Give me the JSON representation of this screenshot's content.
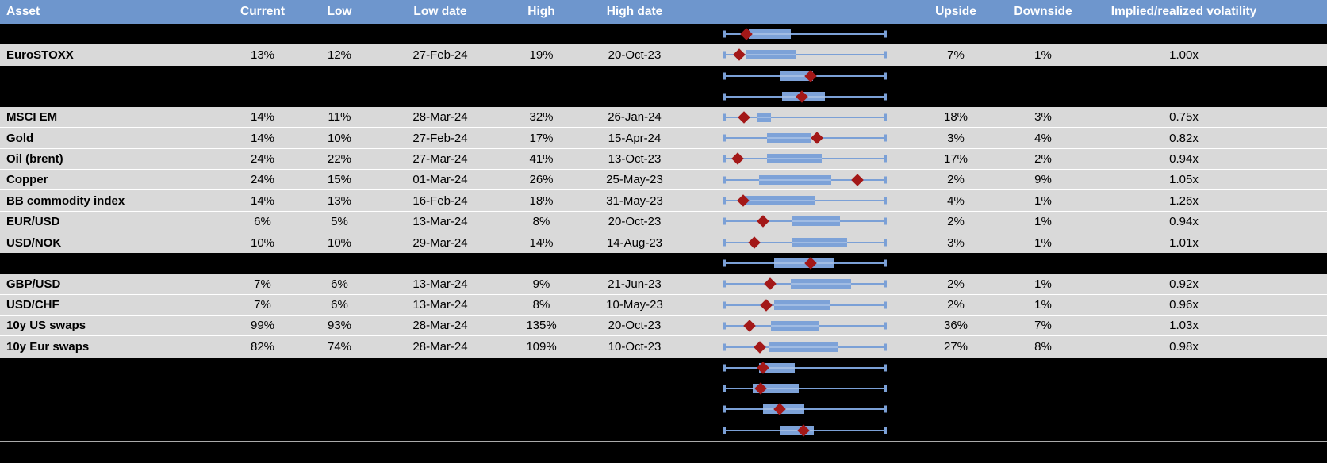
{
  "colors": {
    "header_bg": "#6e96cd",
    "header_text": "#ffffff",
    "row_bg": "#d9d9d9",
    "hidden_row_bg": "#000000",
    "row_text": "#000000",
    "gridline": "#ffffff",
    "whisker": "#7ba0d6",
    "box_fill": "#7da2d8",
    "diamond": "#a31818",
    "footer_line": "#aaaaaa",
    "footer_bg": "#000000"
  },
  "chart_data": {
    "type": "table",
    "columns": [
      "Asset",
      "Current",
      "Low",
      "Low date",
      "High",
      "High date",
      "",
      "Upside",
      "Downside",
      "Implied/realized volatility"
    ],
    "embedded_chart": {
      "type": "boxplot-horizontal",
      "description": "Per-row horizontal box-whisker plot of implied volatility range: whiskers span the full low-to-high range (normalized 0 to 1), blue box is the interquartile band, dark-red diamond marks the current level",
      "marker": "diamond",
      "x_range": [
        0,
        1
      ],
      "legend": "none",
      "grid": false
    },
    "rows": [
      {
        "asset": "",
        "current": "",
        "low": "",
        "low_date": "",
        "high": "",
        "high_date": "",
        "upside": "",
        "downside": "",
        "implied_realized": "",
        "hidden": true,
        "boxplot": {
          "box_lo": 0.152,
          "box_hi": 0.412,
          "diamond": 0.137
        }
      },
      {
        "asset": "EuroSTOXX",
        "current": "13%",
        "low": "12%",
        "low_date": "27-Feb-24",
        "high": "19%",
        "high_date": "20-Oct-23",
        "upside": "7%",
        "downside": "1%",
        "implied_realized": "1.00x",
        "hidden": false,
        "boxplot": {
          "box_lo": 0.137,
          "box_hi": 0.446,
          "diamond": 0.093
        }
      },
      {
        "asset": "",
        "current": "",
        "low": "",
        "low_date": "",
        "high": "",
        "high_date": "",
        "upside": "",
        "downside": "",
        "implied_realized": "",
        "hidden": true,
        "boxplot": {
          "box_lo": 0.343,
          "box_hi": 0.549,
          "diamond": 0.534
        }
      },
      {
        "asset": "",
        "current": "",
        "low": "",
        "low_date": "",
        "high": "",
        "high_date": "",
        "upside": "",
        "downside": "",
        "implied_realized": "",
        "hidden": true,
        "boxplot": {
          "box_lo": 0.358,
          "box_hi": 0.623,
          "diamond": 0.48
        }
      },
      {
        "asset": "MSCI EM",
        "current": "14%",
        "low": "11%",
        "low_date": "28-Mar-24",
        "high": "32%",
        "high_date": "26-Jan-24",
        "upside": "18%",
        "downside": "3%",
        "implied_realized": "0.75x",
        "hidden": false,
        "boxplot": {
          "box_lo": 0.206,
          "box_hi": 0.289,
          "diamond": 0.123
        }
      },
      {
        "asset": "Gold",
        "current": "14%",
        "low": "10%",
        "low_date": "27-Feb-24",
        "high": "17%",
        "high_date": "15-Apr-24",
        "upside": "3%",
        "downside": "4%",
        "implied_realized": "0.82x",
        "hidden": false,
        "boxplot": {
          "box_lo": 0.265,
          "box_hi": 0.539,
          "diamond": 0.574
        }
      },
      {
        "asset": "Oil (brent)",
        "current": "24%",
        "low": "22%",
        "low_date": "27-Mar-24",
        "high": "41%",
        "high_date": "13-Oct-23",
        "upside": "17%",
        "downside": "2%",
        "implied_realized": "0.94x",
        "hidden": false,
        "boxplot": {
          "box_lo": 0.265,
          "box_hi": 0.603,
          "diamond": 0.083
        }
      },
      {
        "asset": "Copper",
        "current": "24%",
        "low": "15%",
        "low_date": "01-Mar-24",
        "high": "26%",
        "high_date": "25-May-23",
        "upside": "2%",
        "downside": "9%",
        "implied_realized": "1.05x",
        "hidden": false,
        "boxplot": {
          "box_lo": 0.216,
          "box_hi": 0.662,
          "diamond": 0.824
        }
      },
      {
        "asset": "BB commodity index",
        "current": "14%",
        "low": "13%",
        "low_date": "16-Feb-24",
        "high": "18%",
        "high_date": "31-May-23",
        "upside": "4%",
        "downside": "1%",
        "implied_realized": "1.26x",
        "hidden": false,
        "boxplot": {
          "box_lo": 0.127,
          "box_hi": 0.564,
          "diamond": 0.118
        }
      },
      {
        "asset": "EUR/USD",
        "current": "6%",
        "low": "5%",
        "low_date": "13-Mar-24",
        "high": "8%",
        "high_date": "20-Oct-23",
        "upside": "2%",
        "downside": "1%",
        "implied_realized": "0.94x",
        "hidden": false,
        "boxplot": {
          "box_lo": 0.417,
          "box_hi": 0.716,
          "diamond": 0.24
        }
      },
      {
        "asset": "USD/NOK",
        "current": "10%",
        "low": "10%",
        "low_date": "29-Mar-24",
        "high": "14%",
        "high_date": "14-Aug-23",
        "upside": "3%",
        "downside": "1%",
        "implied_realized": "1.01x",
        "hidden": false,
        "boxplot": {
          "box_lo": 0.417,
          "box_hi": 0.76,
          "diamond": 0.186
        }
      },
      {
        "asset": "",
        "current": "",
        "low": "",
        "low_date": "",
        "high": "",
        "high_date": "",
        "upside": "",
        "downside": "",
        "implied_realized": "",
        "hidden": true,
        "boxplot": {
          "box_lo": 0.309,
          "box_hi": 0.681,
          "diamond": 0.534
        }
      },
      {
        "asset": "GBP/USD",
        "current": "7%",
        "low": "6%",
        "low_date": "13-Mar-24",
        "high": "9%",
        "high_date": "21-Jun-23",
        "upside": "2%",
        "downside": "1%",
        "implied_realized": "0.92x",
        "hidden": false,
        "boxplot": {
          "box_lo": 0.412,
          "box_hi": 0.784,
          "diamond": 0.284
        }
      },
      {
        "asset": "USD/CHF",
        "current": "7%",
        "low": "6%",
        "low_date": "13-Mar-24",
        "high": "8%",
        "high_date": "10-May-23",
        "upside": "2%",
        "downside": "1%",
        "implied_realized": "0.96x",
        "hidden": false,
        "boxplot": {
          "box_lo": 0.309,
          "box_hi": 0.652,
          "diamond": 0.26
        }
      },
      {
        "asset": "10y US swaps",
        "current": "99%",
        "low": "93%",
        "low_date": "28-Mar-24",
        "high": "135%",
        "high_date": "20-Oct-23",
        "upside": "36%",
        "downside": "7%",
        "implied_realized": "1.03x",
        "hidden": false,
        "boxplot": {
          "box_lo": 0.289,
          "box_hi": 0.583,
          "diamond": 0.157
        }
      },
      {
        "asset": "10y Eur swaps",
        "current": "82%",
        "low": "74%",
        "low_date": "28-Mar-24",
        "high": "109%",
        "high_date": "10-Oct-23",
        "upside": "27%",
        "downside": "8%",
        "implied_realized": "0.98x",
        "hidden": false,
        "boxplot": {
          "box_lo": 0.279,
          "box_hi": 0.701,
          "diamond": 0.221
        }
      },
      {
        "asset": "",
        "current": "",
        "low": "",
        "low_date": "",
        "high": "",
        "high_date": "",
        "upside": "",
        "downside": "",
        "implied_realized": "",
        "hidden": true,
        "boxplot": {
          "box_lo": 0.216,
          "box_hi": 0.436,
          "diamond": 0.24
        }
      },
      {
        "asset": "",
        "current": "",
        "low": "",
        "low_date": "",
        "high": "",
        "high_date": "",
        "upside": "",
        "downside": "",
        "implied_realized": "",
        "hidden": true,
        "boxplot": {
          "box_lo": 0.176,
          "box_hi": 0.461,
          "diamond": 0.225
        }
      },
      {
        "asset": "",
        "current": "",
        "low": "",
        "low_date": "",
        "high": "",
        "high_date": "",
        "upside": "",
        "downside": "",
        "implied_realized": "",
        "hidden": true,
        "boxplot": {
          "box_lo": 0.24,
          "box_hi": 0.495,
          "diamond": 0.343
        }
      },
      {
        "asset": "",
        "current": "",
        "low": "",
        "low_date": "",
        "high": "",
        "high_date": "",
        "upside": "",
        "downside": "",
        "implied_realized": "",
        "hidden": true,
        "boxplot": {
          "box_lo": 0.343,
          "box_hi": 0.554,
          "diamond": 0.49
        }
      }
    ]
  }
}
